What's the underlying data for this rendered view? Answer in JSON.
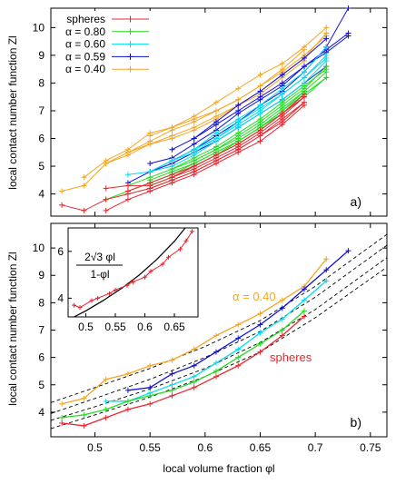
{
  "figure": {
    "x_axis_label": "local volume fraction φl",
    "x_ticks": [
      "0.5",
      "0.55",
      "0.6",
      "0.65",
      "0.7",
      "0.75"
    ]
  },
  "chart_data": [
    {
      "id": "a",
      "type": "line",
      "panel_label": "a)",
      "ylabel": "local contact number function Zl",
      "xlim": [
        0.46,
        0.765
      ],
      "ylim": [
        3.2,
        10.7
      ],
      "y_ticks": [
        4,
        5,
        6,
        7,
        8,
        9,
        10
      ],
      "legend_position": "top-left",
      "legend": [
        {
          "label": "spheres",
          "color": "#e8262e"
        },
        {
          "label": "α = 0.80",
          "color": "#22dd22"
        },
        {
          "label": "α = 0.60",
          "color": "#00ddee"
        },
        {
          "label": "α = 0.59",
          "color": "#1010dd"
        },
        {
          "label": "α = 0.40",
          "color": "#f5a623"
        }
      ],
      "series": [
        {
          "color": "#f5a623",
          "x": [
            0.47,
            0.49,
            0.51,
            0.53,
            0.55,
            0.57,
            0.59,
            0.61,
            0.63,
            0.65,
            0.67,
            0.69,
            0.71
          ],
          "y": [
            4.1,
            4.3,
            5.1,
            5.4,
            5.8,
            6.0,
            6.3,
            6.7,
            7.2,
            7.7,
            8.3,
            8.9,
            9.8
          ]
        },
        {
          "color": "#f5a623",
          "x": [
            0.49,
            0.51,
            0.53,
            0.55,
            0.57,
            0.59,
            0.61,
            0.63,
            0.65,
            0.67,
            0.69
          ],
          "y": [
            4.6,
            5.2,
            5.6,
            6.2,
            6.4,
            6.7,
            7.0,
            7.4,
            7.9,
            8.5,
            9.2
          ]
        },
        {
          "color": "#f5a623",
          "x": [
            0.51,
            0.53,
            0.55,
            0.57,
            0.59,
            0.61,
            0.63,
            0.65,
            0.67,
            0.69
          ],
          "y": [
            5.1,
            5.5,
            5.8,
            6.1,
            6.4,
            6.8,
            7.2,
            7.6,
            8.2,
            8.8
          ]
        },
        {
          "color": "#f5a623",
          "x": [
            0.53,
            0.55,
            0.57,
            0.59,
            0.61,
            0.63,
            0.65,
            0.67,
            0.69,
            0.71
          ],
          "y": [
            5.5,
            5.9,
            6.3,
            6.6,
            7.0,
            7.4,
            7.9,
            8.4,
            9.0,
            9.7
          ]
        },
        {
          "color": "#f5a623",
          "x": [
            0.55,
            0.57,
            0.59,
            0.61,
            0.63,
            0.65,
            0.67,
            0.69,
            0.71
          ],
          "y": [
            6.1,
            6.4,
            6.8,
            7.3,
            7.8,
            8.3,
            8.7,
            9.3,
            10.0
          ]
        },
        {
          "color": "#1010dd",
          "x": [
            0.53,
            0.55,
            0.57,
            0.59,
            0.61,
            0.63,
            0.65,
            0.67,
            0.69,
            0.71,
            0.73
          ],
          "y": [
            4.4,
            4.8,
            5.2,
            5.6,
            6.1,
            6.6,
            7.2,
            7.7,
            8.4,
            9.3,
            10.7
          ]
        },
        {
          "color": "#1010dd",
          "x": [
            0.55,
            0.57,
            0.59,
            0.61,
            0.63,
            0.65,
            0.67,
            0.69,
            0.71,
            0.73
          ],
          "y": [
            5.1,
            5.3,
            5.8,
            6.3,
            6.9,
            7.4,
            7.9,
            8.6,
            9.2,
            9.8
          ]
        },
        {
          "color": "#1010dd",
          "x": [
            0.57,
            0.59,
            0.61,
            0.63,
            0.65,
            0.67,
            0.69,
            0.71,
            0.73
          ],
          "y": [
            5.6,
            6.0,
            6.5,
            7.0,
            7.5,
            8.0,
            8.6,
            9.1,
            9.7
          ]
        },
        {
          "color": "#1010dd",
          "x": [
            0.59,
            0.61,
            0.63,
            0.65,
            0.67,
            0.69,
            0.71
          ],
          "y": [
            6.0,
            6.6,
            7.2,
            7.7,
            8.3,
            8.9,
            9.6
          ]
        },
        {
          "color": "#1010dd",
          "x": [
            0.55,
            0.57,
            0.59,
            0.61,
            0.63,
            0.65,
            0.67,
            0.69,
            0.71
          ],
          "y": [
            4.8,
            5.1,
            5.5,
            5.9,
            6.4,
            6.9,
            7.4,
            8.0,
            8.6
          ]
        },
        {
          "color": "#00ddee",
          "x": [
            0.53,
            0.55,
            0.57,
            0.59,
            0.61,
            0.63,
            0.65,
            0.67,
            0.69,
            0.71
          ],
          "y": [
            4.7,
            4.8,
            5.0,
            5.4,
            5.9,
            6.4,
            6.9,
            7.4,
            8.0,
            8.8
          ]
        },
        {
          "color": "#00ddee",
          "x": [
            0.55,
            0.57,
            0.59,
            0.61,
            0.63,
            0.65,
            0.67,
            0.69,
            0.71
          ],
          "y": [
            4.8,
            5.2,
            5.6,
            6.0,
            6.6,
            7.1,
            7.6,
            8.2,
            9.0
          ]
        },
        {
          "color": "#00ddee",
          "x": [
            0.57,
            0.59,
            0.61,
            0.63,
            0.65,
            0.67,
            0.69,
            0.71
          ],
          "y": [
            5.2,
            5.5,
            6.0,
            6.5,
            7.0,
            7.6,
            8.2,
            8.9
          ]
        },
        {
          "color": "#00ddee",
          "x": [
            0.59,
            0.61,
            0.63,
            0.65,
            0.67,
            0.69,
            0.71
          ],
          "y": [
            5.6,
            6.2,
            6.7,
            7.2,
            7.8,
            8.4,
            9.3
          ]
        },
        {
          "color": "#22dd22",
          "x": [
            0.51,
            0.53,
            0.55,
            0.57,
            0.59,
            0.61,
            0.63,
            0.65,
            0.67,
            0.69,
            0.71
          ],
          "y": [
            3.8,
            4.1,
            4.4,
            4.7,
            5.1,
            5.5,
            5.9,
            6.4,
            7.0,
            7.6,
            8.2
          ]
        },
        {
          "color": "#22dd22",
          "x": [
            0.53,
            0.55,
            0.57,
            0.59,
            0.61,
            0.63,
            0.65,
            0.67,
            0.69,
            0.71
          ],
          "y": [
            4.3,
            4.6,
            4.9,
            5.2,
            5.6,
            6.0,
            6.5,
            7.1,
            7.7,
            8.4
          ]
        },
        {
          "color": "#22dd22",
          "x": [
            0.55,
            0.57,
            0.59,
            0.61,
            0.63,
            0.65,
            0.67,
            0.69,
            0.71
          ],
          "y": [
            4.5,
            4.8,
            5.1,
            5.5,
            5.9,
            6.4,
            6.9,
            7.5,
            8.2
          ]
        },
        {
          "color": "#22dd22",
          "x": [
            0.57,
            0.59,
            0.61,
            0.63,
            0.65,
            0.67,
            0.69,
            0.71
          ],
          "y": [
            4.9,
            5.3,
            5.7,
            6.2,
            6.7,
            7.3,
            7.9,
            8.5
          ]
        },
        {
          "color": "#22dd22",
          "x": [
            0.55,
            0.57,
            0.59,
            0.61,
            0.63,
            0.65,
            0.67,
            0.69
          ],
          "y": [
            4.3,
            4.6,
            5.0,
            5.4,
            5.9,
            6.4,
            7.0,
            7.7
          ]
        },
        {
          "color": "#22dd22",
          "x": [
            0.59,
            0.61,
            0.63,
            0.65,
            0.67,
            0.69,
            0.71
          ],
          "y": [
            5.2,
            5.6,
            6.1,
            6.6,
            7.2,
            7.8,
            8.6
          ]
        },
        {
          "color": "#e8262e",
          "x": [
            0.47,
            0.49,
            0.51,
            0.53,
            0.55,
            0.57,
            0.59,
            0.61,
            0.63,
            0.65,
            0.67,
            0.69
          ],
          "y": [
            3.6,
            3.4,
            3.8,
            4.0,
            4.2,
            4.5,
            4.8,
            5.2,
            5.6,
            6.1,
            6.7,
            7.3
          ]
        },
        {
          "color": "#e8262e",
          "x": [
            0.51,
            0.53,
            0.55,
            0.57,
            0.59,
            0.61,
            0.63,
            0.65,
            0.67,
            0.69
          ],
          "y": [
            3.4,
            3.8,
            4.1,
            4.4,
            4.7,
            5.1,
            5.5,
            5.9,
            6.5,
            7.2
          ]
        },
        {
          "color": "#e8262e",
          "x": [
            0.51,
            0.53,
            0.55,
            0.57,
            0.59,
            0.61,
            0.63,
            0.65,
            0.67,
            0.69
          ],
          "y": [
            4.2,
            4.3,
            4.3,
            4.6,
            4.9,
            5.3,
            5.7,
            6.2,
            6.8,
            7.5
          ]
        },
        {
          "color": "#e8262e",
          "x": [
            0.53,
            0.55,
            0.57,
            0.59,
            0.61,
            0.63,
            0.65,
            0.67,
            0.69
          ],
          "y": [
            4.1,
            4.4,
            4.7,
            5.0,
            5.4,
            5.8,
            6.3,
            6.9,
            7.6
          ]
        },
        {
          "color": "#e8262e",
          "x": [
            0.55,
            0.57,
            0.59,
            0.61,
            0.63,
            0.65,
            0.67,
            0.69
          ],
          "y": [
            4.2,
            4.5,
            4.8,
            5.2,
            5.6,
            6.1,
            6.6,
            7.3
          ]
        },
        {
          "color": "#e8262e",
          "x": [
            0.57,
            0.59,
            0.61,
            0.63,
            0.65,
            0.67,
            0.69
          ],
          "y": [
            4.6,
            5.0,
            5.4,
            5.8,
            6.3,
            6.9,
            7.5
          ]
        }
      ]
    },
    {
      "id": "b",
      "type": "line",
      "panel_label": "b)",
      "ylabel": "local contact number function Zl",
      "xlim": [
        0.46,
        0.765
      ],
      "ylim": [
        3.1,
        10.9
      ],
      "y_ticks": [
        4,
        5,
        6,
        7,
        8,
        9,
        10
      ],
      "annotations": [
        {
          "text": "α = 0.40",
          "color": "#f5a623"
        },
        {
          "text": "spheres",
          "color": "#e8262e"
        }
      ],
      "series": [
        {
          "name": "α = 0.40",
          "color": "#f5a623",
          "x": [
            0.47,
            0.49,
            0.51,
            0.53,
            0.55,
            0.57,
            0.59,
            0.61,
            0.63,
            0.65,
            0.67,
            0.69,
            0.71
          ],
          "y": [
            4.3,
            4.5,
            5.2,
            5.4,
            5.7,
            5.9,
            6.3,
            6.8,
            7.2,
            7.6,
            8.1,
            8.6,
            9.6
          ]
        },
        {
          "name": "α = 0.59",
          "color": "#1010dd",
          "x": [
            0.53,
            0.55,
            0.57,
            0.59,
            0.61,
            0.63,
            0.65,
            0.67,
            0.69,
            0.71,
            0.73
          ],
          "y": [
            4.8,
            4.9,
            5.4,
            5.7,
            6.2,
            6.7,
            7.2,
            7.8,
            8.5,
            9.2,
            9.9
          ]
        },
        {
          "name": "α = 0.60",
          "color": "#00ddee",
          "x": [
            0.51,
            0.53,
            0.55,
            0.57,
            0.59,
            0.61,
            0.63,
            0.65,
            0.67,
            0.69,
            0.71
          ],
          "y": [
            4.4,
            4.4,
            4.7,
            5.0,
            5.3,
            5.8,
            6.3,
            6.9,
            7.4,
            8.1,
            8.8
          ]
        },
        {
          "name": "α = 0.80",
          "color": "#22dd22",
          "x": [
            0.47,
            0.49,
            0.51,
            0.53,
            0.55,
            0.57,
            0.59,
            0.61,
            0.63,
            0.65,
            0.67,
            0.69
          ],
          "y": [
            3.8,
            3.9,
            4.1,
            4.4,
            4.6,
            4.8,
            5.1,
            5.5,
            6.0,
            6.5,
            7.0,
            7.7
          ]
        },
        {
          "name": "spheres",
          "color": "#e8262e",
          "x": [
            0.47,
            0.49,
            0.51,
            0.53,
            0.55,
            0.57,
            0.59,
            0.61,
            0.63,
            0.65,
            0.67,
            0.69
          ],
          "y": [
            3.6,
            3.5,
            3.8,
            4.1,
            4.3,
            4.6,
            4.9,
            5.3,
            5.7,
            6.2,
            6.8,
            7.5
          ]
        }
      ],
      "fits": [
        {
          "x": [
            0.46,
            0.5,
            0.55,
            0.6,
            0.65,
            0.7,
            0.765
          ],
          "y": [
            4.35,
            4.9,
            5.6,
            6.4,
            7.35,
            8.6,
            10.5
          ]
        },
        {
          "x": [
            0.46,
            0.5,
            0.55,
            0.6,
            0.65,
            0.7,
            0.765
          ],
          "y": [
            3.95,
            4.5,
            5.2,
            6.0,
            6.95,
            8.2,
            10.1
          ]
        },
        {
          "x": [
            0.46,
            0.5,
            0.55,
            0.6,
            0.65,
            0.7,
            0.765
          ],
          "y": [
            3.7,
            4.2,
            4.85,
            5.6,
            6.55,
            7.75,
            9.65
          ]
        },
        {
          "x": [
            0.46,
            0.5,
            0.55,
            0.6,
            0.65,
            0.7,
            0.765
          ],
          "y": [
            3.4,
            3.9,
            4.55,
            5.3,
            6.2,
            7.45,
            9.3
          ]
        }
      ],
      "inset": {
        "formula_numerator": "2√3 φl",
        "formula_denominator": "1-φl",
        "xlim": [
          0.47,
          0.69
        ],
        "ylim": [
          3.2,
          7.0
        ],
        "x_ticks": [
          "0.5",
          "0.55",
          "0.6",
          "0.65"
        ],
        "y_ticks": [
          4,
          6
        ],
        "curve": {
          "x": [
            0.47,
            0.5,
            0.53,
            0.56,
            0.59,
            0.62,
            0.65,
            0.68
          ],
          "y": [
            3.07,
            3.46,
            3.91,
            4.41,
            4.98,
            5.65,
            6.43,
            7.36
          ]
        },
        "points": {
          "color": "#e8262e",
          "x": [
            0.48,
            0.49,
            0.51,
            0.52,
            0.54,
            0.55,
            0.57,
            0.58,
            0.6,
            0.61,
            0.63,
            0.64,
            0.66,
            0.67,
            0.68
          ],
          "y": [
            3.7,
            3.6,
            3.9,
            4.0,
            4.2,
            4.35,
            4.55,
            4.7,
            4.9,
            5.15,
            5.45,
            5.75,
            6.1,
            6.45,
            6.85
          ]
        }
      }
    }
  ]
}
